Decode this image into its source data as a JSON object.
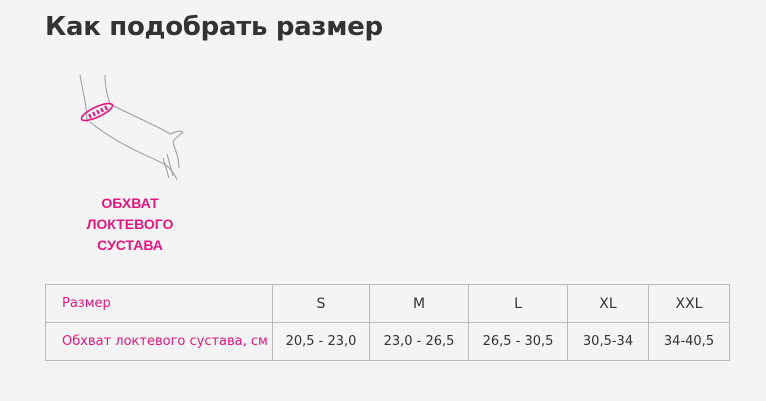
{
  "title": "Как подобрать размер",
  "illustration": {
    "icon": "elbow-circumference-arm-icon",
    "caption_lines": [
      "ОБХВАТ",
      "ЛОКТЕВОГО",
      "СУСТАВА"
    ]
  },
  "accent_color": "#e5167f",
  "table": {
    "header": {
      "label": "Размер",
      "sizes": [
        "S",
        "M",
        "L",
        "XL",
        "XXL"
      ]
    },
    "row": {
      "label": "Обхват локтевого сустава, см",
      "values": [
        "20,5 - 23,0",
        "23,0 - 26,5",
        "26,5 - 30,5",
        "30,5-34",
        "34-40,5"
      ]
    }
  }
}
